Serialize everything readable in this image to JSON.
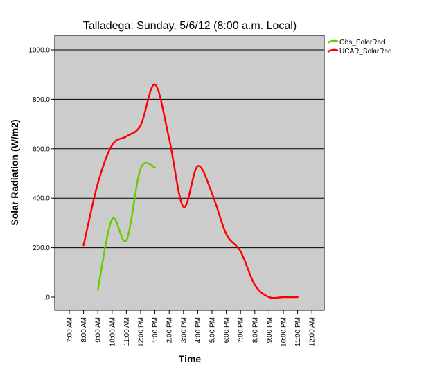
{
  "chart_data": {
    "type": "line",
    "title": "Talladega: Sunday, 5/6/12 (8:00 a.m. Local)",
    "xlabel": "Time",
    "ylabel": "Solar Radiation (W/m2)",
    "ylim": [
      0,
      1000
    ],
    "yticks": [
      0,
      200,
      400,
      600,
      800,
      1000
    ],
    "ytick_labels": [
      ".0",
      "200.0",
      "400.0",
      "600.0",
      "800.0",
      "1000.0"
    ],
    "categories": [
      "7:00 AM",
      "8:00 AM",
      "9:00 AM",
      "10:00 AM",
      "11:00 AM",
      "12:00 PM",
      "1:00 PM",
      "2:00 PM",
      "3:00 PM",
      "4:00 PM",
      "5:00 PM",
      "6:00 PM",
      "7:00 PM",
      "8:00 PM",
      "9:00 PM",
      "10:00 PM",
      "11:00 PM",
      "12:00 AM"
    ],
    "grid": "horizontal",
    "background": "#cccccc",
    "legend_position": "top-right",
    "series": [
      {
        "name": "Obs_SolarRad",
        "color": "#66cc00",
        "values": [
          null,
          null,
          30,
          315,
          230,
          520,
          525,
          null,
          null,
          null,
          null,
          null,
          null,
          null,
          null,
          null,
          null,
          null
        ]
      },
      {
        "name": "UCAR_SolarRad",
        "color": "#ff0000",
        "values": [
          null,
          210,
          460,
          615,
          650,
          695,
          860,
          640,
          365,
          530,
          420,
          255,
          185,
          50,
          0,
          0,
          0,
          null
        ]
      }
    ]
  }
}
